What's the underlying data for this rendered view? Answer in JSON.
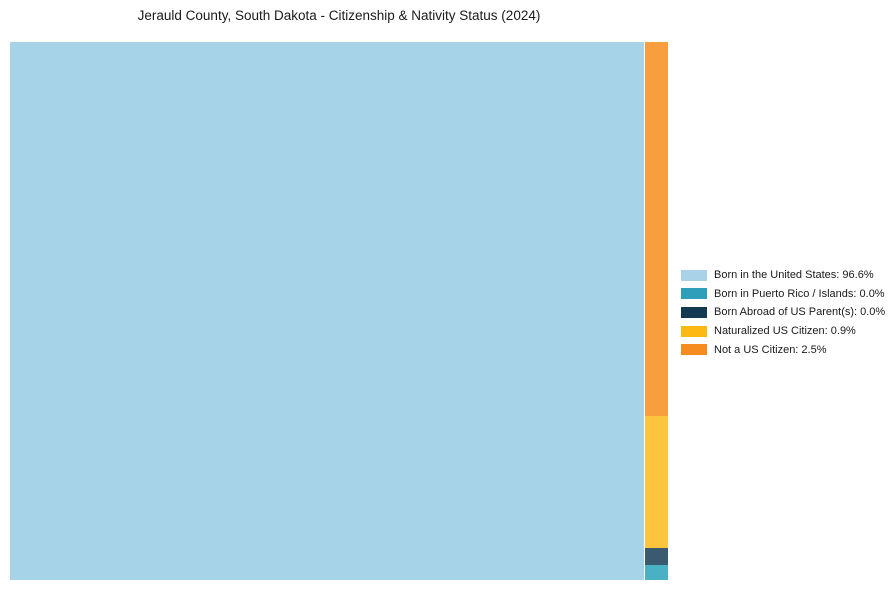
{
  "chart_data": {
    "type": "treemap",
    "title": "Jerauld County, South Dakota - Citizenship & Nativity Status (2024)",
    "unit": "percent",
    "legend_position": "right",
    "grid": false,
    "categories": [
      "Born in the United States",
      "Born in Puerto Rico / Islands",
      "Born Abroad of US Parent(s)",
      "Naturalized US Citizen",
      "Not a US Citizen"
    ],
    "values": [
      96.6,
      0.0,
      0.0,
      0.9,
      2.5
    ],
    "series": [
      {
        "name": "Born in the United States",
        "value": 96.6,
        "tile_color": "#a6d3e8",
        "legend_color": "#a8d2e8"
      },
      {
        "name": "Born in Puerto Rico / Islands",
        "value": 0.0,
        "tile_color": "#4ab1c4",
        "legend_color": "#2d9fbb"
      },
      {
        "name": "Born Abroad of US Parent(s)",
        "value": 0.0,
        "tile_color": "#395a6f",
        "legend_color": "#133a52"
      },
      {
        "name": "Naturalized US Citizen",
        "value": 0.9,
        "tile_color": "#fdc53e",
        "legend_color": "#fdb813"
      },
      {
        "name": "Not a US Citizen",
        "value": 2.5,
        "tile_color": "#f89e3f",
        "legend_color": "#f68b1f"
      }
    ]
  },
  "legend": {
    "items": [
      {
        "label": "Born in the United States: 96.6%",
        "color": "#a8d2e8"
      },
      {
        "label": "Born in Puerto Rico / Islands: 0.0%",
        "color": "#2d9fbb"
      },
      {
        "label": "Born Abroad of US Parent(s): 0.0%",
        "color": "#133a52"
      },
      {
        "label": "Naturalized US Citizen: 0.9%",
        "color": "#fdb813"
      },
      {
        "label": "Not a US Citizen: 2.5%",
        "color": "#f68b1f"
      }
    ]
  }
}
